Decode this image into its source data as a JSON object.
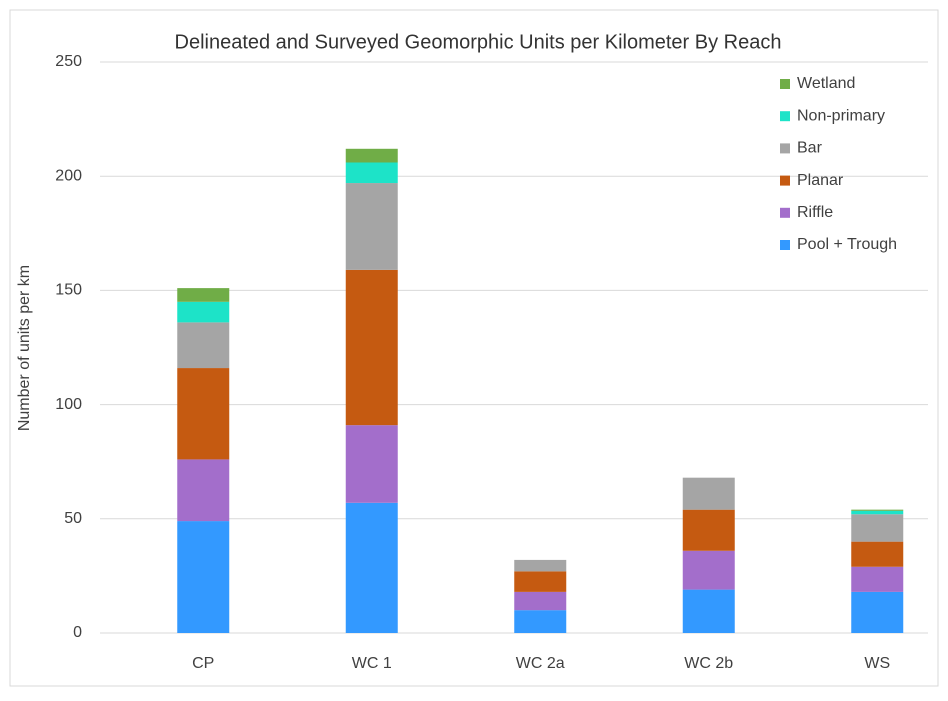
{
  "chart_data": {
    "type": "stacked_bar",
    "title": "Delineated and Surveyed Geomorphic Units per Kilometer By Reach",
    "y_label": "Number of units per km",
    "categories": [
      "CP",
      "WC 1",
      "WC 2a",
      "WC 2b",
      "WS"
    ],
    "series": [
      {
        "name": "Pool + Trough",
        "color": "#3399ff",
        "values": [
          49,
          57,
          10,
          19,
          18
        ]
      },
      {
        "name": "Riffle",
        "color": "#a36ecb",
        "values": [
          27,
          34,
          8,
          17,
          11
        ]
      },
      {
        "name": "Planar",
        "color": "#c55a11",
        "values": [
          40,
          68,
          9,
          18,
          11
        ]
      },
      {
        "name": "Bar",
        "color": "#a5a5a5",
        "values": [
          20,
          38,
          5,
          14,
          12
        ]
      },
      {
        "name": "Non-primary",
        "color": "#1de3c8",
        "values": [
          9,
          9,
          0,
          0,
          1.5
        ]
      },
      {
        "name": "Wetland",
        "color": "#70ad47",
        "values": [
          6,
          6,
          0,
          0,
          0.5
        ]
      }
    ],
    "ylim": [
      0,
      250
    ],
    "yticks": [
      0,
      50,
      100,
      150,
      200,
      250
    ],
    "grid": true,
    "legend": "top-right"
  }
}
